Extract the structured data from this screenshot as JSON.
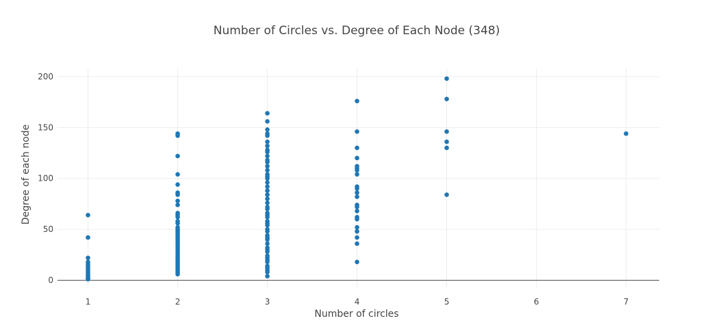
{
  "chart_data": {
    "type": "scatter",
    "title": "Number of Circles vs. Degree of Each Node (348)",
    "xlabel": "Number of circles",
    "ylabel": "Degree of each node",
    "xlim": [
      0.66,
      7.37
    ],
    "ylim": [
      -7,
      208
    ],
    "xticks": [
      1,
      2,
      3,
      4,
      5,
      6,
      7
    ],
    "yticks": [
      0,
      50,
      100,
      150,
      200
    ],
    "grid": true,
    "marker_color": "#1f77b4",
    "points": [
      {
        "x": 1,
        "y": 64
      },
      {
        "x": 1,
        "y": 42
      },
      {
        "x": 1,
        "y": 22
      },
      {
        "x": 1,
        "y": 18
      },
      {
        "x": 1,
        "y": 16
      },
      {
        "x": 1,
        "y": 14
      },
      {
        "x": 1,
        "y": 12
      },
      {
        "x": 1,
        "y": 10
      },
      {
        "x": 1,
        "y": 8
      },
      {
        "x": 1,
        "y": 6
      },
      {
        "x": 1,
        "y": 4
      },
      {
        "x": 1,
        "y": 2
      },
      {
        "x": 1,
        "y": 1
      },
      {
        "x": 2,
        "y": 144
      },
      {
        "x": 2,
        "y": 142
      },
      {
        "x": 2,
        "y": 122
      },
      {
        "x": 2,
        "y": 104
      },
      {
        "x": 2,
        "y": 94
      },
      {
        "x": 2,
        "y": 86
      },
      {
        "x": 2,
        "y": 84
      },
      {
        "x": 2,
        "y": 78
      },
      {
        "x": 2,
        "y": 74
      },
      {
        "x": 2,
        "y": 66
      },
      {
        "x": 2,
        "y": 64
      },
      {
        "x": 2,
        "y": 62
      },
      {
        "x": 2,
        "y": 58
      },
      {
        "x": 2,
        "y": 56
      },
      {
        "x": 2,
        "y": 52
      },
      {
        "x": 2,
        "y": 50
      },
      {
        "x": 2,
        "y": 48
      },
      {
        "x": 2,
        "y": 46
      },
      {
        "x": 2,
        "y": 44
      },
      {
        "x": 2,
        "y": 42
      },
      {
        "x": 2,
        "y": 40
      },
      {
        "x": 2,
        "y": 38
      },
      {
        "x": 2,
        "y": 36
      },
      {
        "x": 2,
        "y": 34
      },
      {
        "x": 2,
        "y": 32
      },
      {
        "x": 2,
        "y": 30
      },
      {
        "x": 2,
        "y": 28
      },
      {
        "x": 2,
        "y": 26
      },
      {
        "x": 2,
        "y": 24
      },
      {
        "x": 2,
        "y": 22
      },
      {
        "x": 2,
        "y": 20
      },
      {
        "x": 2,
        "y": 18
      },
      {
        "x": 2,
        "y": 16
      },
      {
        "x": 2,
        "y": 14
      },
      {
        "x": 2,
        "y": 12
      },
      {
        "x": 2,
        "y": 10
      },
      {
        "x": 2,
        "y": 8
      },
      {
        "x": 2,
        "y": 6
      },
      {
        "x": 3,
        "y": 164
      },
      {
        "x": 3,
        "y": 156
      },
      {
        "x": 3,
        "y": 148
      },
      {
        "x": 3,
        "y": 144
      },
      {
        "x": 3,
        "y": 142
      },
      {
        "x": 3,
        "y": 136
      },
      {
        "x": 3,
        "y": 132
      },
      {
        "x": 3,
        "y": 128
      },
      {
        "x": 3,
        "y": 126
      },
      {
        "x": 3,
        "y": 122
      },
      {
        "x": 3,
        "y": 118
      },
      {
        "x": 3,
        "y": 116
      },
      {
        "x": 3,
        "y": 112
      },
      {
        "x": 3,
        "y": 108
      },
      {
        "x": 3,
        "y": 104
      },
      {
        "x": 3,
        "y": 102
      },
      {
        "x": 3,
        "y": 100
      },
      {
        "x": 3,
        "y": 96
      },
      {
        "x": 3,
        "y": 92
      },
      {
        "x": 3,
        "y": 88
      },
      {
        "x": 3,
        "y": 84
      },
      {
        "x": 3,
        "y": 80
      },
      {
        "x": 3,
        "y": 76
      },
      {
        "x": 3,
        "y": 72
      },
      {
        "x": 3,
        "y": 70
      },
      {
        "x": 3,
        "y": 66
      },
      {
        "x": 3,
        "y": 64
      },
      {
        "x": 3,
        "y": 62
      },
      {
        "x": 3,
        "y": 58
      },
      {
        "x": 3,
        "y": 56
      },
      {
        "x": 3,
        "y": 54
      },
      {
        "x": 3,
        "y": 50
      },
      {
        "x": 3,
        "y": 48
      },
      {
        "x": 3,
        "y": 44
      },
      {
        "x": 3,
        "y": 42
      },
      {
        "x": 3,
        "y": 40
      },
      {
        "x": 3,
        "y": 36
      },
      {
        "x": 3,
        "y": 32
      },
      {
        "x": 3,
        "y": 30
      },
      {
        "x": 3,
        "y": 28
      },
      {
        "x": 3,
        "y": 24
      },
      {
        "x": 3,
        "y": 22
      },
      {
        "x": 3,
        "y": 20
      },
      {
        "x": 3,
        "y": 18
      },
      {
        "x": 3,
        "y": 14
      },
      {
        "x": 3,
        "y": 12
      },
      {
        "x": 3,
        "y": 10
      },
      {
        "x": 3,
        "y": 8
      },
      {
        "x": 3,
        "y": 4
      },
      {
        "x": 4,
        "y": 176
      },
      {
        "x": 4,
        "y": 146
      },
      {
        "x": 4,
        "y": 130
      },
      {
        "x": 4,
        "y": 120
      },
      {
        "x": 4,
        "y": 112
      },
      {
        "x": 4,
        "y": 110
      },
      {
        "x": 4,
        "y": 108
      },
      {
        "x": 4,
        "y": 104
      },
      {
        "x": 4,
        "y": 92
      },
      {
        "x": 4,
        "y": 90
      },
      {
        "x": 4,
        "y": 86
      },
      {
        "x": 4,
        "y": 82
      },
      {
        "x": 4,
        "y": 74
      },
      {
        "x": 4,
        "y": 72
      },
      {
        "x": 4,
        "y": 68
      },
      {
        "x": 4,
        "y": 62
      },
      {
        "x": 4,
        "y": 60
      },
      {
        "x": 4,
        "y": 52
      },
      {
        "x": 4,
        "y": 48
      },
      {
        "x": 4,
        "y": 42
      },
      {
        "x": 4,
        "y": 36
      },
      {
        "x": 4,
        "y": 18
      },
      {
        "x": 5,
        "y": 198
      },
      {
        "x": 5,
        "y": 178
      },
      {
        "x": 5,
        "y": 146
      },
      {
        "x": 5,
        "y": 136
      },
      {
        "x": 5,
        "y": 130
      },
      {
        "x": 5,
        "y": 84
      },
      {
        "x": 7,
        "y": 144
      }
    ]
  }
}
